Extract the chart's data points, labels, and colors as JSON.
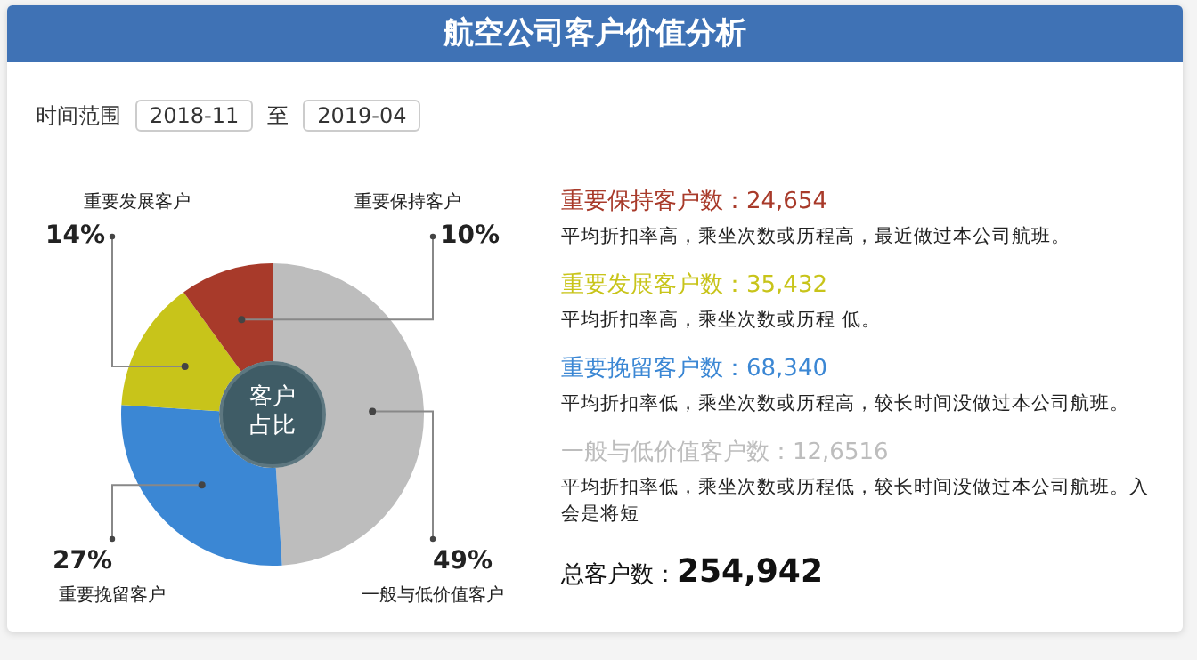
{
  "chart_data": {
    "type": "donut",
    "title": "航空公司客户价值分析",
    "categories": [
      "一般与低价值客户",
      "重要挽留客户",
      "重要发展客户",
      "重要保持客户"
    ],
    "values": [
      49,
      27,
      14,
      10
    ],
    "value_labels": [
      "49%",
      "27%",
      "14%",
      "10%"
    ],
    "colors": [
      "#bdbdbd",
      "#3b87d4",
      "#c8c41a",
      "#a83a2a"
    ],
    "annotations": [
      "时间范围",
      "2018-11",
      "至",
      "2019-04",
      "客户占比",
      "重要保持客户数：24,654",
      "平均折扣率高，乘坐次数或历程高，最近做过本公司航班。",
      "重要发展客户数：35,432",
      "平均折扣率高，乘坐次数或历程 低。",
      "重要挽留客户数：68,340",
      "平均折扣率低，乘坐次数或历程高，较长时间没做过本公司航班。",
      "一般与低价值客户数：12,6516",
      "平均折扣率低，乘坐次数或历程低，较长时间没做过本公司航班。入会是将短",
      "总客户数：",
      "254,942"
    ],
    "legend": false
  }
}
